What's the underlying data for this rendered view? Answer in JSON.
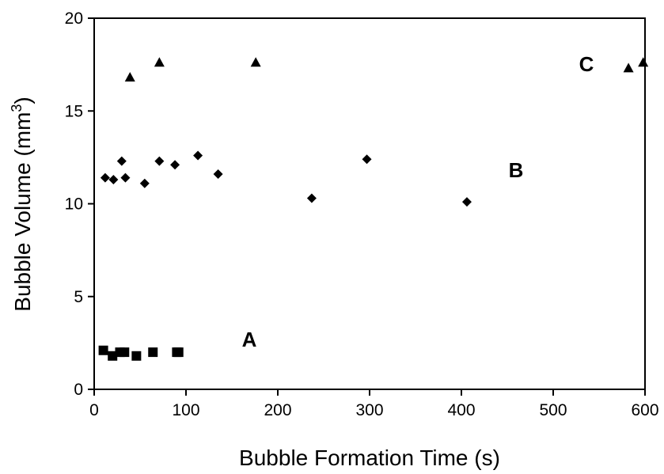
{
  "chart_data": {
    "type": "scatter",
    "title": "",
    "xlabel": "Bubble Formation Time (s)",
    "ylabel_main": "Bubble Volume (mm",
    "ylabel_sup": "3",
    "ylabel_close": ")",
    "xlim": [
      0,
      600
    ],
    "ylim": [
      0,
      20
    ],
    "xticks": [
      "0",
      "100",
      "200",
      "300",
      "400",
      "500",
      "600"
    ],
    "yticks": [
      "0",
      "5",
      "10",
      "15",
      "20"
    ],
    "grid": false,
    "series": [
      {
        "name": "A",
        "marker": "square",
        "points": [
          [
            10,
            2.1
          ],
          [
            20,
            1.8
          ],
          [
            28,
            2.0
          ],
          [
            33,
            2.0
          ],
          [
            46,
            1.8
          ],
          [
            64,
            2.0
          ],
          [
            90,
            2.0
          ],
          [
            92,
            2.0
          ]
        ]
      },
      {
        "name": "B",
        "marker": "diamond",
        "points": [
          [
            12,
            11.4
          ],
          [
            21,
            11.3
          ],
          [
            30,
            12.3
          ],
          [
            34,
            11.4
          ],
          [
            55,
            11.1
          ],
          [
            71,
            12.3
          ],
          [
            88,
            12.1
          ],
          [
            113,
            12.6
          ],
          [
            135,
            11.6
          ],
          [
            237,
            10.3
          ],
          [
            297,
            12.4
          ],
          [
            406,
            10.1
          ]
        ]
      },
      {
        "name": "C",
        "marker": "triangle",
        "points": [
          [
            39,
            16.8
          ],
          [
            71,
            17.6
          ],
          [
            176,
            17.6
          ],
          [
            582,
            17.3
          ],
          [
            598,
            17.6
          ]
        ]
      }
    ]
  }
}
